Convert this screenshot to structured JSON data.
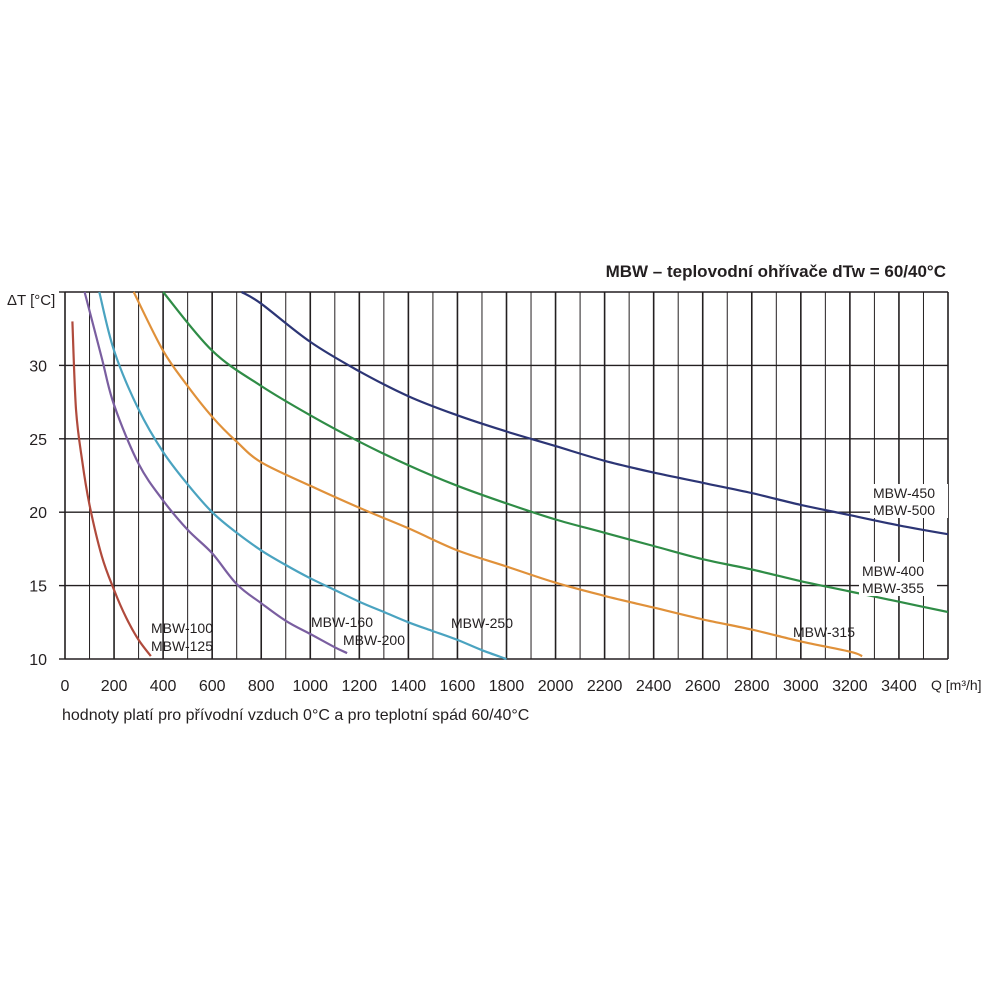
{
  "chart_data": {
    "type": "line",
    "title": "MBW – teplovodní ohřívače dTw = 60/40°C",
    "ylabel": "ΔT [°C]",
    "xlabel": "Q [m³/h]",
    "note": "hodnoty platí pro přívodní vzduch 0°C a pro teplotní spád 60/40°C",
    "xlim": [
      0,
      3600
    ],
    "ylim": [
      10,
      35
    ],
    "x_ticks": [
      "0",
      "200",
      "400",
      "600",
      "800",
      "1000",
      "1200",
      "1400",
      "1600",
      "1800",
      "2000",
      "2200",
      "2400",
      "2600",
      "2800",
      "3000",
      "3200",
      "3400"
    ],
    "y_ticks": [
      "10",
      "15",
      "20",
      "25",
      "30"
    ],
    "grid": "on",
    "series": [
      {
        "labels": [
          "MBW-100",
          "MBW-125"
        ],
        "color": "#b04a3c",
        "points": [
          [
            30,
            33
          ],
          [
            45,
            27
          ],
          [
            70,
            23.5
          ],
          [
            100,
            20.5
          ],
          [
            150,
            17
          ],
          [
            200,
            14.7
          ],
          [
            250,
            12.8
          ],
          [
            300,
            11.3
          ],
          [
            350,
            10.2
          ]
        ]
      },
      {
        "labels": [
          "MBW-160",
          "MBW-200"
        ],
        "color": "#7a5ea0",
        "points": [
          [
            80,
            35
          ],
          [
            150,
            30.5
          ],
          [
            200,
            27.3
          ],
          [
            300,
            23.3
          ],
          [
            400,
            20.8
          ],
          [
            500,
            18.8
          ],
          [
            600,
            17.2
          ],
          [
            700,
            15.1
          ],
          [
            800,
            13.8
          ],
          [
            900,
            12.6
          ],
          [
            1000,
            11.7
          ],
          [
            1100,
            10.8
          ],
          [
            1150,
            10.4
          ]
        ]
      },
      {
        "labels": [
          "MBW-250"
        ],
        "color": "#4aa3c0",
        "points": [
          [
            140,
            35
          ],
          [
            200,
            31
          ],
          [
            300,
            27
          ],
          [
            400,
            24.1
          ],
          [
            500,
            21.9
          ],
          [
            600,
            20
          ],
          [
            700,
            18.6
          ],
          [
            800,
            17.4
          ],
          [
            900,
            16.4
          ],
          [
            1000,
            15.5
          ],
          [
            1100,
            14.7
          ],
          [
            1200,
            13.9
          ],
          [
            1300,
            13.2
          ],
          [
            1400,
            12.5
          ],
          [
            1500,
            11.9
          ],
          [
            1600,
            11.3
          ],
          [
            1700,
            10.6
          ],
          [
            1800,
            10
          ]
        ]
      },
      {
        "labels": [
          "MBW-315"
        ],
        "color": "#e0913a",
        "points": [
          [
            280,
            35
          ],
          [
            400,
            31
          ],
          [
            500,
            28.6
          ],
          [
            600,
            26.5
          ],
          [
            700,
            24.8
          ],
          [
            800,
            23.4
          ],
          [
            1000,
            21.8
          ],
          [
            1200,
            20.3
          ],
          [
            1400,
            18.9
          ],
          [
            1600,
            17.4
          ],
          [
            1800,
            16.3
          ],
          [
            2000,
            15.2
          ],
          [
            2200,
            14.3
          ],
          [
            2400,
            13.5
          ],
          [
            2600,
            12.7
          ],
          [
            2800,
            12
          ],
          [
            3000,
            11.2
          ],
          [
            3200,
            10.5
          ],
          [
            3250,
            10.2
          ]
        ]
      },
      {
        "labels": [
          "MBW-400",
          "MBW-355"
        ],
        "color": "#2f8c46",
        "points": [
          [
            400,
            35
          ],
          [
            600,
            31
          ],
          [
            800,
            28.6
          ],
          [
            1000,
            26.6
          ],
          [
            1200,
            24.8
          ],
          [
            1400,
            23.2
          ],
          [
            1600,
            21.8
          ],
          [
            1800,
            20.6
          ],
          [
            2000,
            19.5
          ],
          [
            2200,
            18.6
          ],
          [
            2400,
            17.7
          ],
          [
            2600,
            16.8
          ],
          [
            2800,
            16.1
          ],
          [
            3000,
            15.3
          ],
          [
            3200,
            14.6
          ],
          [
            3400,
            13.9
          ],
          [
            3600,
            13.2
          ]
        ]
      },
      {
        "labels": [
          "MBW-450",
          "MBW-500"
        ],
        "color": "#2c3575",
        "points": [
          [
            720,
            35
          ],
          [
            800,
            34.2
          ],
          [
            1000,
            31.6
          ],
          [
            1200,
            29.6
          ],
          [
            1400,
            27.9
          ],
          [
            1600,
            26.6
          ],
          [
            1800,
            25.5
          ],
          [
            2000,
            24.5
          ],
          [
            2200,
            23.5
          ],
          [
            2400,
            22.7
          ],
          [
            2600,
            22
          ],
          [
            2800,
            21.3
          ],
          [
            3000,
            20.5
          ],
          [
            3200,
            19.8
          ],
          [
            3400,
            19.1
          ],
          [
            3600,
            18.5
          ]
        ]
      }
    ]
  }
}
